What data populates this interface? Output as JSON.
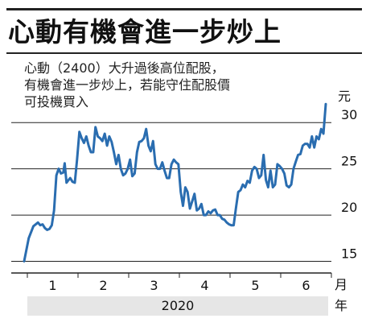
{
  "headline": "心動有機會進一步炒上",
  "description": [
    "心動（2400）大升過後高位配股，",
    "有機會進一步炒上，若能守住配股價",
    "可投機買入"
  ],
  "colors": {
    "line": "#2a6db0",
    "grid": "#222222",
    "year_band": "#e6e6e6"
  },
  "chart_data": {
    "type": "line",
    "title": "心動有機會進一步炒上",
    "ylabel": "元",
    "xlabel": "月",
    "x_group_label": "2020",
    "x_group_unit": "年",
    "y_ticks": [
      15,
      20,
      25,
      30
    ],
    "ylim": [
      14,
      33.5
    ],
    "x_categories": [
      "1",
      "2",
      "3",
      "4",
      "5",
      "6"
    ],
    "grid": "horizontal",
    "series": [
      {
        "x": [
          0.0,
          0.1,
          0.2,
          0.3,
          0.35,
          0.4,
          0.45,
          0.5,
          0.55,
          0.6,
          0.65,
          0.7,
          0.75,
          0.8,
          0.85,
          0.88,
          0.92,
          0.95,
          1.0,
          1.05,
          1.1,
          1.15,
          1.2,
          1.25,
          1.3,
          1.35,
          1.4,
          1.45,
          1.5,
          1.55,
          1.6,
          1.65,
          1.7,
          1.75,
          1.8,
          1.85,
          1.9,
          1.95,
          2.0,
          2.05,
          2.1,
          2.15,
          2.2,
          2.25,
          2.3,
          2.35,
          2.4,
          2.45,
          2.5,
          2.55,
          2.6,
          2.65,
          2.7,
          2.75,
          2.8,
          2.85,
          2.9,
          2.95,
          3.0,
          3.05,
          3.1,
          3.15,
          3.2,
          3.25,
          3.3,
          3.35,
          3.4,
          3.45,
          3.5,
          3.55,
          3.6,
          3.65,
          3.7,
          3.75,
          3.8,
          3.85,
          3.9,
          3.95,
          4.0,
          4.05,
          4.1,
          4.15,
          4.2,
          4.25,
          4.3,
          4.35,
          4.4,
          4.45,
          4.5,
          4.55,
          4.6,
          4.65,
          4.7,
          4.75,
          4.8,
          4.85,
          4.9,
          4.95,
          5.0,
          5.05,
          5.1,
          5.15,
          5.2,
          5.25,
          5.3,
          5.35,
          5.4,
          5.45,
          5.5,
          5.55,
          5.6,
          5.65,
          5.7,
          5.75,
          5.8,
          5.85,
          5.9,
          5.95,
          6.0,
          6.05,
          6.1,
          6.15,
          6.2,
          6.25,
          6.3,
          6.35,
          6.4,
          6.45,
          6.5,
          6.55
        ],
        "y": [
          15.0,
          17.5,
          18.8,
          19.2,
          18.9,
          19.0,
          18.6,
          18.4,
          18.5,
          18.9,
          20.5,
          24.3,
          25.0,
          24.5,
          24.6,
          25.6,
          23.5,
          23.7,
          24.0,
          23.6,
          23.5,
          26.0,
          29.0,
          28.3,
          27.8,
          28.5,
          27.5,
          26.8,
          26.8,
          29.5,
          28.5,
          28.3,
          28.0,
          28.8,
          27.5,
          28.5,
          27.9,
          26.8,
          25.5,
          26.5,
          25.0,
          24.3,
          24.5,
          25.0,
          26.0,
          24.2,
          24.5,
          26.8,
          27.9,
          28.0,
          28.3,
          29.3,
          27.5,
          26.9,
          28.0,
          25.5,
          25.0,
          25.0,
          25.7,
          24.8,
          24.0,
          24.0,
          25.5,
          26.0,
          25.7,
          25.5,
          22.5,
          21.0,
          23.0,
          22.5,
          20.7,
          21.5,
          22.3,
          20.5,
          20.7,
          21.2,
          20.0,
          20.0,
          20.4,
          20.2,
          20.5,
          20.6,
          20.0,
          20.0,
          19.6,
          19.5,
          19.2,
          19.0,
          18.9,
          18.9,
          20.8,
          22.5,
          22.7,
          23.3,
          23.0,
          23.7,
          23.5,
          24.8,
          25.2,
          25.0,
          24.0,
          24.3,
          26.5,
          23.8,
          23.0,
          24.8,
          23.0,
          23.3,
          25.5,
          25.3,
          25.0,
          24.5,
          23.2,
          23.0,
          23.3,
          25.0,
          25.8,
          26.5,
          26.6,
          27.5,
          27.7,
          27.7,
          27.3,
          28.5,
          27.3,
          28.5,
          28.2,
          29.3,
          28.8,
          32.0
        ]
      }
    ]
  }
}
